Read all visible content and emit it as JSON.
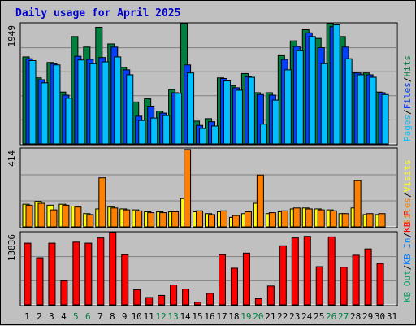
{
  "header": {
    "title": "Daily usage for April 2025"
  },
  "colors": {
    "hits": "#008040",
    "files": "#0040ff",
    "pages": "#00c0ff",
    "visits": "#ffff00",
    "sites": "#ff8000",
    "kbin": "#0080ff",
    "kbout": "#00a060",
    "kbf": "#ff0000",
    "weekend_label": "#008040",
    "weekday_label": "#000000"
  },
  "chart_data": [
    {
      "type": "bar",
      "title": "Daily usage for April 2025",
      "panel": "hits_files_pages",
      "ymax_label": "1949",
      "ylim": [
        0,
        1949
      ],
      "categories": [
        "1",
        "2",
        "3",
        "4",
        "5",
        "6",
        "7",
        "8",
        "9",
        "10",
        "11",
        "12",
        "13",
        "14",
        "15",
        "16",
        "17",
        "18",
        "19",
        "20",
        "21",
        "22",
        "23",
        "24",
        "25",
        "26",
        "27",
        "28",
        "29",
        "30",
        "31"
      ],
      "weekend_days": [
        "5",
        "6",
        "12",
        "13",
        "19",
        "20",
        "26",
        "27"
      ],
      "legend": [
        {
          "key": "hits",
          "label": "Hits",
          "sep": "/"
        },
        {
          "key": "files",
          "label": "Files",
          "sep": "/"
        },
        {
          "key": "pages",
          "label": "Pages",
          "sep": ""
        }
      ],
      "series": [
        {
          "name": "Hits",
          "values": [
            1410,
            1070,
            1320,
            840,
            1740,
            1570,
            1890,
            1620,
            1240,
            680,
            730,
            530,
            880,
            1950,
            370,
            410,
            1070,
            940,
            1140,
            830,
            830,
            1430,
            1670,
            1850,
            1710,
            1950,
            1740,
            1150,
            1150,
            840,
            0
          ]
        },
        {
          "name": "Files",
          "values": [
            1380,
            1040,
            1300,
            790,
            1420,
            1370,
            1400,
            1570,
            1200,
            450,
            600,
            500,
            830,
            1280,
            300,
            360,
            1060,
            910,
            1090,
            800,
            790,
            1370,
            1580,
            1800,
            1560,
            1900,
            1570,
            1150,
            1120,
            830,
            0
          ]
        },
        {
          "name": "Pages",
          "values": [
            1350,
            990,
            1280,
            740,
            1360,
            1300,
            1330,
            1410,
            1120,
            380,
            420,
            460,
            820,
            1150,
            250,
            290,
            1020,
            870,
            1080,
            320,
            710,
            1200,
            1510,
            1740,
            1300,
            1930,
            1380,
            1120,
            1080,
            800,
            0
          ]
        }
      ]
    },
    {
      "type": "bar",
      "panel": "visits_sites",
      "ymax_label": "414",
      "ylim": [
        0,
        414
      ],
      "legend": [
        {
          "key": "visits",
          "label": "Visits",
          "sep": "/"
        },
        {
          "key": "sites",
          "label": "Sites",
          "sep": ""
        }
      ],
      "series": [
        {
          "name": "Visits",
          "values": [
            120,
            135,
            115,
            120,
            110,
            70,
            95,
            105,
            95,
            90,
            80,
            80,
            80,
            150,
            80,
            70,
            80,
            50,
            70,
            125,
            70,
            80,
            95,
            100,
            95,
            90,
            70,
            100,
            65,
            65,
            0
          ]
        },
        {
          "name": "Sites",
          "values": [
            115,
            125,
            90,
            115,
            105,
            65,
            260,
            100,
            90,
            85,
            75,
            75,
            80,
            410,
            85,
            65,
            85,
            60,
            80,
            275,
            75,
            85,
            100,
            95,
            90,
            85,
            70,
            245,
            70,
            70,
            0
          ]
        }
      ]
    },
    {
      "type": "bar",
      "panel": "kbytes",
      "ymax_label": "13836",
      "ylim": [
        0,
        13836
      ],
      "legend": [
        {
          "key": "kbf",
          "label": "KB F",
          "sep": "/"
        },
        {
          "key": "kbin",
          "label": "KB In",
          "sep": "/"
        },
        {
          "key": "kbout",
          "label": "KB Out",
          "sep": ""
        }
      ],
      "series": [
        {
          "name": "KB F",
          "values": [
            11800,
            9000,
            11800,
            4600,
            12000,
            11800,
            12800,
            14300,
            9600,
            2900,
            1400,
            1800,
            3800,
            3000,
            500,
            2200,
            9600,
            7000,
            9900,
            1200,
            3600,
            11300,
            12800,
            13100,
            7300,
            13000,
            7200,
            9500,
            10700,
            7900,
            0
          ]
        }
      ]
    }
  ]
}
